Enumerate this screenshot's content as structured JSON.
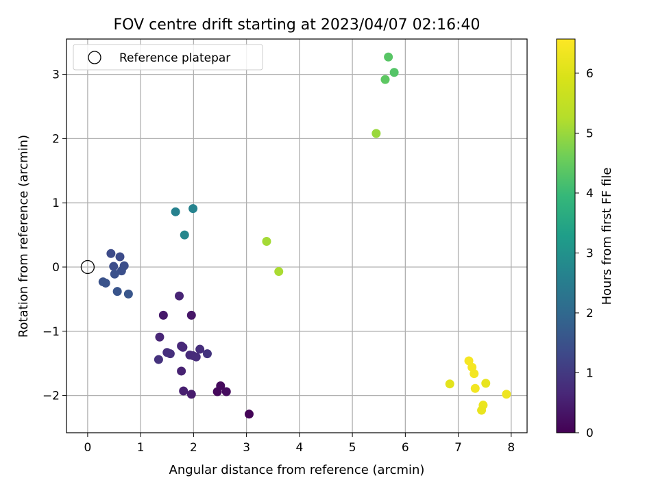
{
  "chart_data": {
    "type": "scatter",
    "title": "FOV centre drift starting at 2023/04/07 02:16:40",
    "xlabel": "Angular distance from reference (arcmin)",
    "ylabel": "Rotation from reference (arcmin)",
    "xlim": [
      -0.4,
      8.3
    ],
    "ylim": [
      -2.58,
      3.55
    ],
    "xticks": [
      0,
      1,
      2,
      3,
      4,
      5,
      6,
      7,
      8
    ],
    "yticks": [
      -2,
      -1,
      0,
      1,
      2,
      3
    ],
    "ytick_labels": [
      "−2",
      "−1",
      "0",
      "1",
      "2",
      "3"
    ],
    "grid": true,
    "legend": {
      "position": "top-left",
      "entries": [
        "Reference platepar"
      ]
    },
    "reference_point": {
      "x": 0,
      "y": 0,
      "label": "Reference platepar",
      "marker": "hollow circle"
    },
    "colorbar": {
      "label": "Hours from first FF file",
      "colormap": "viridis",
      "range": [
        0,
        6.57
      ],
      "ticks": [
        0,
        1,
        2,
        3,
        4,
        5,
        6
      ]
    },
    "points": [
      {
        "x": 3.05,
        "y": -2.29,
        "c": 0.05
      },
      {
        "x": 2.45,
        "y": -1.94,
        "c": 0.12
      },
      {
        "x": 2.51,
        "y": -1.85,
        "c": 0.15
      },
      {
        "x": 2.62,
        "y": -1.94,
        "c": 0.18
      },
      {
        "x": 1.96,
        "y": -0.75,
        "c": 0.35
      },
      {
        "x": 1.43,
        "y": -0.75,
        "c": 0.4
      },
      {
        "x": 1.96,
        "y": -1.98,
        "c": 0.45
      },
      {
        "x": 1.81,
        "y": -1.93,
        "c": 0.5
      },
      {
        "x": 1.77,
        "y": -1.62,
        "c": 0.55
      },
      {
        "x": 1.73,
        "y": -0.45,
        "c": 0.6
      },
      {
        "x": 1.36,
        "y": -1.09,
        "c": 0.62
      },
      {
        "x": 1.77,
        "y": -1.23,
        "c": 0.65
      },
      {
        "x": 1.8,
        "y": -1.25,
        "c": 0.68
      },
      {
        "x": 1.93,
        "y": -1.37,
        "c": 0.7
      },
      {
        "x": 1.99,
        "y": -1.38,
        "c": 0.72
      },
      {
        "x": 2.05,
        "y": -1.4,
        "c": 0.75
      },
      {
        "x": 2.12,
        "y": -1.28,
        "c": 0.78
      },
      {
        "x": 1.5,
        "y": -1.33,
        "c": 0.8
      },
      {
        "x": 1.56,
        "y": -1.35,
        "c": 0.82
      },
      {
        "x": 1.34,
        "y": -1.44,
        "c": 0.85
      },
      {
        "x": 2.26,
        "y": -1.35,
        "c": 0.9
      },
      {
        "x": 0.44,
        "y": 0.21,
        "c": 1.35
      },
      {
        "x": 0.61,
        "y": 0.16,
        "c": 1.38
      },
      {
        "x": 0.49,
        "y": 0.01,
        "c": 1.4
      },
      {
        "x": 0.69,
        "y": 0.02,
        "c": 1.42
      },
      {
        "x": 0.64,
        "y": -0.06,
        "c": 1.45
      },
      {
        "x": 0.51,
        "y": -0.11,
        "c": 1.48
      },
      {
        "x": 0.29,
        "y": -0.23,
        "c": 1.5
      },
      {
        "x": 0.34,
        "y": -0.25,
        "c": 1.52
      },
      {
        "x": 0.56,
        "y": -0.38,
        "c": 1.55
      },
      {
        "x": 0.77,
        "y": -0.42,
        "c": 1.58
      },
      {
        "x": 1.66,
        "y": 0.86,
        "c": 2.6
      },
      {
        "x": 1.99,
        "y": 0.91,
        "c": 2.65
      },
      {
        "x": 1.83,
        "y": 0.5,
        "c": 2.75
      },
      {
        "x": 3.38,
        "y": 0.4,
        "c": 5.1
      },
      {
        "x": 3.61,
        "y": -0.07,
        "c": 5.15
      },
      {
        "x": 5.45,
        "y": 2.08,
        "c": 5.0
      },
      {
        "x": 5.62,
        "y": 2.92,
        "c": 4.4
      },
      {
        "x": 5.68,
        "y": 3.27,
        "c": 4.35
      },
      {
        "x": 5.79,
        "y": 3.03,
        "c": 4.3
      },
      {
        "x": 6.84,
        "y": -1.82,
        "c": 6.1
      },
      {
        "x": 7.2,
        "y": -1.46,
        "c": 6.45
      },
      {
        "x": 7.26,
        "y": -1.56,
        "c": 6.42
      },
      {
        "x": 7.3,
        "y": -1.66,
        "c": 6.4
      },
      {
        "x": 7.32,
        "y": -1.89,
        "c": 6.38
      },
      {
        "x": 7.52,
        "y": -1.81,
        "c": 6.2
      },
      {
        "x": 7.47,
        "y": -2.15,
        "c": 6.25
      },
      {
        "x": 7.44,
        "y": -2.23,
        "c": 6.22
      },
      {
        "x": 7.91,
        "y": -1.98,
        "c": 6.3
      }
    ]
  }
}
